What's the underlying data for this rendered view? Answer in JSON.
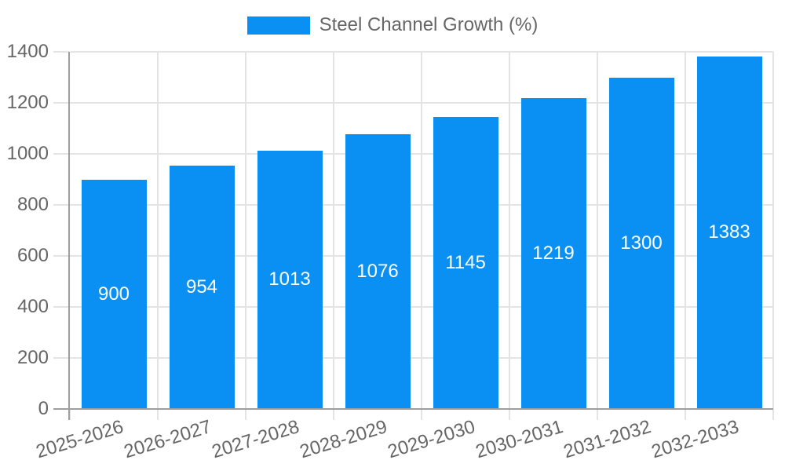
{
  "legend": {
    "items": [
      {
        "label": "Steel Channel Growth (%)",
        "color": "#0a90f2"
      }
    ]
  },
  "chart_data": {
    "type": "bar",
    "title": "Steel Channel Growth (%)",
    "series_name": "Steel Channel Growth (%)",
    "categories": [
      "2025-2026",
      "2026-2027",
      "2027-2028",
      "2028-2029",
      "2029-2030",
      "2030-2031",
      "2031-2032",
      "2032-2033"
    ],
    "values": [
      900,
      954,
      1013,
      1076,
      1145,
      1219,
      1300,
      1383
    ],
    "value_labels": [
      "900",
      "954",
      "1013",
      "1076",
      "1145",
      "1219",
      "1300",
      "1383"
    ],
    "xlabel": "",
    "ylabel": "",
    "ylim": [
      0,
      1400
    ],
    "yticks": [
      0,
      200,
      400,
      600,
      800,
      1000,
      1200,
      1400
    ],
    "grid": true,
    "legend_position": "top-center",
    "bar_color": "#0a90f2",
    "value_label_color": "#ffffff",
    "axis_text_color": "#666666",
    "gridline_color": "#e4e4e4",
    "axis_line_color": "#9e9e9e",
    "x_tick_rotation_deg": -17
  }
}
